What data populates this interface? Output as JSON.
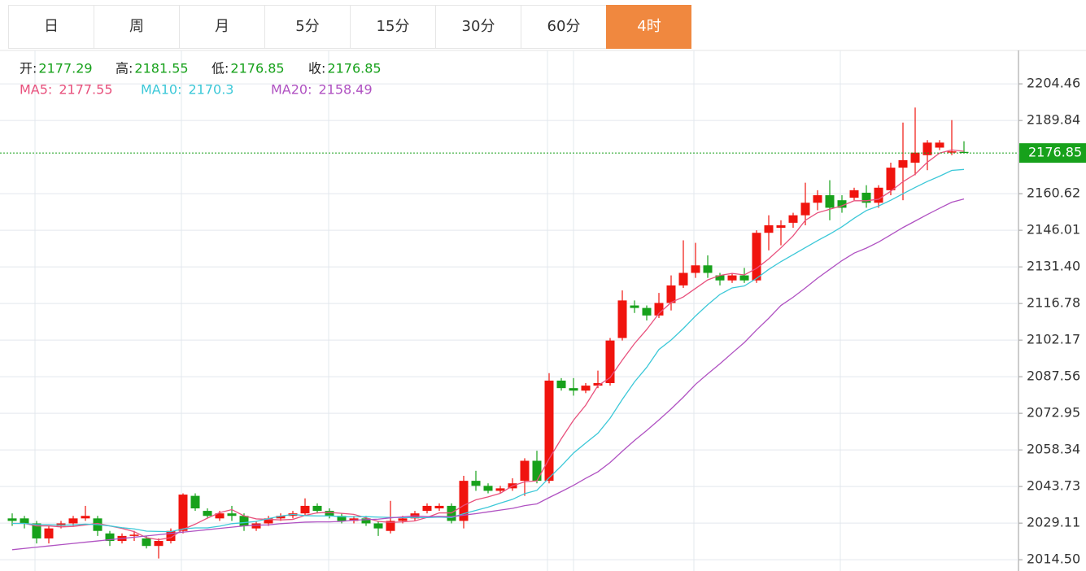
{
  "tabs": {
    "items": [
      "日",
      "周",
      "月",
      "5分",
      "15分",
      "30分",
      "60分",
      "4时"
    ],
    "active": 7
  },
  "chart_data": {
    "type": "candlestick",
    "ohlc_labels": [
      "开:",
      "高:",
      "低:",
      "收:"
    ],
    "up_color": "#f0140e",
    "down_color": "#17a11b",
    "ylim": [
      2010,
      2217.8
    ],
    "yticks": [
      {
        "value": 2014.5,
        "label": "2014.50"
      },
      2029.11,
      2043.73,
      2058.34,
      2072.95,
      2087.56,
      2102.17,
      2116.78,
      {
        "value": 2131.4,
        "label": "2131.40"
      },
      2146.01,
      2160.62,
      2189.84,
      2204.46
    ],
    "grid": true,
    "open": [
      2031,
      2031,
      2029,
      2023,
      2028,
      2029,
      2031,
      2031,
      2025,
      2022,
      2024,
      2023,
      2020,
      2022,
      2026,
      2040,
      2034,
      2031,
      2033,
      2032,
      2027,
      2029,
      2031,
      2032,
      2033,
      2036,
      2034,
      2032,
      2030,
      2031,
      2029,
      2026,
      2030,
      2031,
      2034,
      2035,
      2036,
      2030,
      2046,
      2044,
      2042,
      2043,
      2046,
      2054,
      2046,
      2086,
      2083,
      2082,
      2084,
      2085,
      2103,
      2116,
      2115,
      2112,
      2117,
      2124,
      2129,
      2132,
      2128,
      2126,
      2128,
      2126,
      2145,
      2147,
      2149,
      2152,
      2157,
      2160,
      2158,
      2159,
      2161,
      2157,
      2162,
      2171,
      2173,
      2176,
      2179,
      2177,
      2177.29
    ],
    "high": [
      2033,
      2032,
      2030,
      2028,
      2030,
      2032,
      2036,
      2032,
      2026,
      2025,
      2026,
      2024,
      2023,
      2027,
      2041,
      2041,
      2035,
      2034,
      2036,
      2033,
      2030,
      2032,
      2033,
      2034,
      2039,
      2037,
      2035,
      2033,
      2032,
      2032,
      2030,
      2038,
      2032,
      2034,
      2037,
      2037,
      2037,
      2048,
      2050,
      2045,
      2044,
      2047,
      2055,
      2058,
      2089,
      2087,
      2087,
      2085,
      2090,
      2103,
      2122,
      2118,
      2116,
      2121,
      2128,
      2142,
      2141,
      2136,
      2129,
      2129,
      2131,
      2146,
      2152,
      2150,
      2153,
      2165,
      2162,
      2166,
      2160,
      2163,
      2164,
      2164,
      2173,
      2189,
      2195,
      2182,
      2182,
      2190,
      2181.55
    ],
    "low": [
      2028,
      2027,
      2021,
      2021,
      2027,
      2028,
      2030,
      2024,
      2020,
      2021,
      2022,
      2019,
      2015,
      2021,
      2025,
      2034,
      2031,
      2030,
      2030,
      2026,
      2026,
      2028,
      2030,
      2031,
      2032,
      2033,
      2031,
      2029,
      2029,
      2028,
      2024,
      2025,
      2029,
      2030,
      2033,
      2034,
      2029,
      2027,
      2042,
      2041,
      2041,
      2042,
      2040,
      2045,
      2045,
      2082,
      2080,
      2081,
      2083,
      2084,
      2102,
      2113,
      2110,
      2111,
      2114,
      2123,
      2127,
      2127,
      2124,
      2125,
      2125,
      2125,
      2138,
      2140,
      2147,
      2148,
      2154,
      2150,
      2153,
      2158,
      2155,
      2155,
      2160,
      2158,
      2168,
      2170,
      2178,
      2176,
      2176.85
    ],
    "close": [
      2030,
      2029,
      2023,
      2027,
      2029,
      2031,
      2032,
      2026,
      2022,
      2024,
      2024.5,
      2020,
      2022,
      2026,
      2040.5,
      2035,
      2032,
      2033,
      2032,
      2028,
      2029,
      2031,
      2032,
      2033,
      2036,
      2034,
      2032,
      2030,
      2031,
      2029,
      2027,
      2030,
      2031,
      2033,
      2036,
      2036,
      2030,
      2046,
      2044,
      2042,
      2043,
      2045,
      2054,
      2046,
      2086,
      2083,
      2082,
      2084,
      2085,
      2102,
      2118,
      2115,
      2112,
      2117,
      2124,
      2129,
      2132,
      2129,
      2126,
      2128,
      2126,
      2145,
      2148,
      2148,
      2152,
      2157,
      2160,
      2155,
      2155,
      2162,
      2157,
      2163,
      2171,
      2174,
      2177,
      2181,
      2181,
      2177.5,
      2176.85
    ],
    "series": [
      {
        "name": "MA5:",
        "color": "#e8517d",
        "values": [
          2029,
          2029,
          2028,
          2028,
          2027.6,
          2027.8,
          2028.4,
          2029,
          2028,
          2027,
          2025.7,
          2023.3,
          2022.5,
          2023.3,
          2026.6,
          2028.7,
          2031.1,
          2033.3,
          2034.5,
          2032,
          2030.8,
          2030.6,
          2030.4,
          2030.6,
          2032.2,
          2033.2,
          2033.4,
          2033,
          2032.6,
          2031.2,
          2029.8,
          2029.4,
          2029.6,
          2030,
          2031.4,
          2033.2,
          2033.2,
          2036.2,
          2038.4,
          2039.6,
          2041,
          2044,
          2045.6,
          2046,
          2054.8,
          2062.8,
          2070.2,
          2076.2,
          2084,
          2087.2,
          2094.2,
          2100.8,
          2106.4,
          2112.8,
          2117.2,
          2119.4,
          2122.8,
          2126.2,
          2128,
          2128.8,
          2128.2,
          2130.8,
          2134.6,
          2139,
          2143.8,
          2150,
          2153,
          2154.4,
          2155.8,
          2157.8,
          2157.8,
          2158.4,
          2161.6,
          2165.4,
          2168.4,
          2173.2,
          2176.8,
          2178.1,
          2177.55
        ]
      },
      {
        "name": "MA10:",
        "color": "#3cc8d8",
        "values": [
          2029,
          2029,
          2028.5,
          2028.5,
          2028.3,
          2028.4,
          2028.7,
          2028.5,
          2028,
          2027.3,
          2026.8,
          2025.9,
          2025.8,
          2025.7,
          2026.8,
          2027.2,
          2027.2,
          2027.9,
          2028.9,
          2029.3,
          2029.8,
          2030.9,
          2031.9,
          2032.6,
          2032.1,
          2032,
          2032,
          2031.7,
          2031.6,
          2031.7,
          2031.5,
          2031.4,
          2031.3,
          2031.3,
          2031.3,
          2031.5,
          2031.3,
          2032.9,
          2034.2,
          2035.5,
          2037.1,
          2038.6,
          2040.9,
          2042.2,
          2047.2,
          2051.9,
          2057.1,
          2061.1,
          2065,
          2071,
          2078.5,
          2085.5,
          2091.3,
          2098.4,
          2102.2,
          2106.8,
          2111.8,
          2116.3,
          2120.4,
          2123,
          2123.8,
          2126.8,
          2130.4,
          2133.5,
          2136.3,
          2139.1,
          2141.9,
          2144.5,
          2147.4,
          2150.8,
          2153.9,
          2155.7,
          2158,
          2160.6,
          2163.1,
          2165.5,
          2167.6,
          2169.9,
          2170.3
        ]
      },
      {
        "name": "MA20:",
        "color": "#b052c2",
        "values": [
          2018.5,
          2019,
          2019.5,
          2020,
          2020.5,
          2021,
          2021.5,
          2022,
          2022.5,
          2023,
          2023.5,
          2024,
          2024.5,
          2025,
          2025.5,
          2026,
          2026.5,
          2027,
          2027.5,
          2028,
          2028.3,
          2028.4,
          2028.9,
          2029.2,
          2029.5,
          2029.6,
          2029.6,
          2029.8,
          2030.3,
          2030.5,
          2030.7,
          2031.2,
          2031.6,
          2032,
          2031.7,
          2031.8,
          2031.7,
          2032.3,
          2032.9,
          2033.6,
          2034.3,
          2035,
          2036.1,
          2036.8,
          2039.3,
          2041.7,
          2044.2,
          2047,
          2049.6,
          2053.3,
          2057.8,
          2062.1,
          2066.1,
          2070.3,
          2074.7,
          2079.4,
          2084.5,
          2088.7,
          2092.7,
          2097,
          2101.2,
          2106.2,
          2110.9,
          2116,
          2119.3,
          2123,
          2126.9,
          2130.4,
          2133.9,
          2136.9,
          2138.9,
          2141.3,
          2144.2,
          2147.1,
          2149.7,
          2152.3,
          2154.8,
          2157.2,
          2158.49
        ]
      }
    ]
  }
}
